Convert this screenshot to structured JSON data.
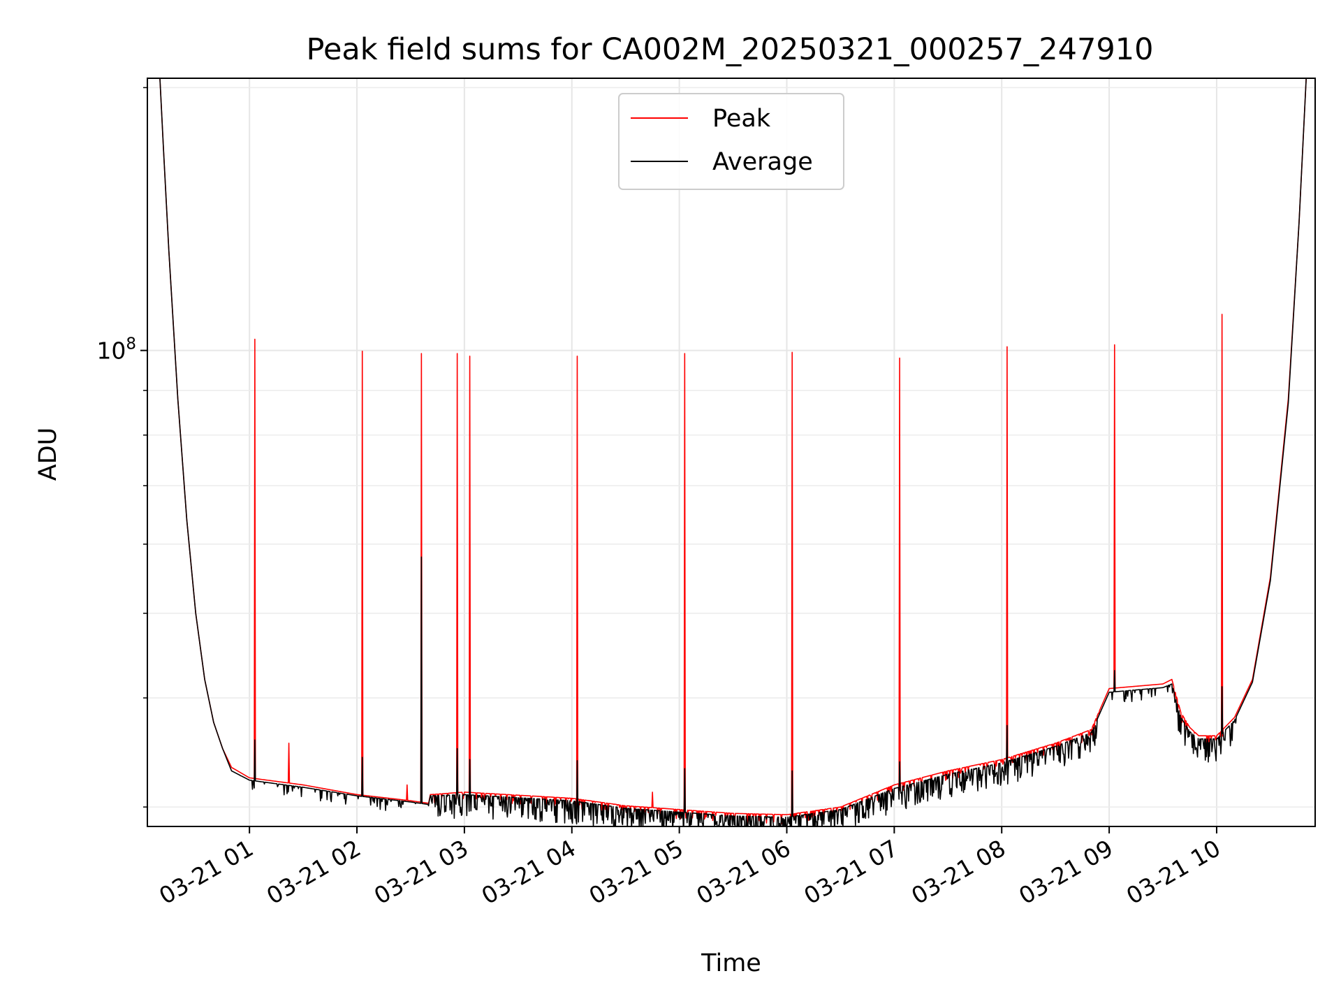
{
  "chart_data": {
    "type": "line",
    "title": "Peak field sums for CA002M_20250321_000257_247910",
    "xlabel": "Time",
    "ylabel": "ADU",
    "y_scale": "log",
    "ylim": [
      28500000,
      205000000
    ],
    "xlim": [
      "2025-03-21 00:03",
      "2025-03-21 10:55"
    ],
    "grid": true,
    "legend_position": "upper center",
    "x_tick_labels": [
      "03-21 01",
      "03-21 02",
      "03-21 03",
      "03-21 04",
      "03-21 05",
      "03-21 06",
      "03-21 07",
      "03-21 08",
      "03-21 09",
      "03-21 10"
    ],
    "x_ticks": [
      "2025-03-21 01:00",
      "2025-03-21 02:00",
      "2025-03-21 03:00",
      "2025-03-21 04:00",
      "2025-03-21 05:00",
      "2025-03-21 06:00",
      "2025-03-21 07:00",
      "2025-03-21 08:00",
      "2025-03-21 09:00",
      "2025-03-21 10:00"
    ],
    "y_major_tick_labels": [
      {
        "value": 100000000,
        "base": "10",
        "exp": "8"
      }
    ],
    "y_minor_ticks": [
      30000000,
      40000000,
      50000000,
      60000000,
      70000000,
      80000000,
      90000000,
      200000000
    ],
    "series": [
      {
        "name": "Peak",
        "color": "#ff0000",
        "baseline": [
          [
            "2025-03-21 00:10",
            205000000
          ],
          [
            "2025-03-21 00:12",
            170000000
          ],
          [
            "2025-03-21 00:15",
            130000000
          ],
          [
            "2025-03-21 00:20",
            88000000
          ],
          [
            "2025-03-21 00:25",
            64000000
          ],
          [
            "2025-03-21 00:30",
            50000000
          ],
          [
            "2025-03-21 00:35",
            42000000
          ],
          [
            "2025-03-21 00:40",
            37500000
          ],
          [
            "2025-03-21 00:45",
            35000000
          ],
          [
            "2025-03-21 00:50",
            33300000
          ],
          [
            "2025-03-21 01:00",
            32400000
          ],
          [
            "2025-03-21 01:30",
            31800000
          ],
          [
            "2025-03-21 02:00",
            31000000
          ],
          [
            "2025-03-21 02:30",
            30500000
          ],
          [
            "2025-03-21 02:40",
            30300000
          ],
          [
            "2025-03-21 02:41",
            31000000
          ],
          [
            "2025-03-21 03:00",
            31200000
          ],
          [
            "2025-03-21 04:00",
            30700000
          ],
          [
            "2025-03-21 04:30",
            30100000
          ],
          [
            "2025-03-21 05:00",
            29800000
          ],
          [
            "2025-03-21 05:30",
            29500000
          ],
          [
            "2025-03-21 06:00",
            29400000
          ],
          [
            "2025-03-21 06:30",
            30000000
          ],
          [
            "2025-03-21 07:00",
            31800000
          ],
          [
            "2025-03-21 07:30",
            33000000
          ],
          [
            "2025-03-21 08:00",
            34000000
          ],
          [
            "2025-03-21 08:30",
            35500000
          ],
          [
            "2025-03-21 08:50",
            36800000
          ],
          [
            "2025-03-21 09:00",
            41000000
          ],
          [
            "2025-03-21 09:30",
            41500000
          ],
          [
            "2025-03-21 09:35",
            42000000
          ],
          [
            "2025-03-21 09:40",
            38500000
          ],
          [
            "2025-03-21 09:45",
            37000000
          ],
          [
            "2025-03-21 09:50",
            36200000
          ],
          [
            "2025-03-21 10:00",
            36200000
          ],
          [
            "2025-03-21 10:10",
            38000000
          ],
          [
            "2025-03-21 10:20",
            42000000
          ],
          [
            "2025-03-21 10:30",
            55000000
          ],
          [
            "2025-03-21 10:40",
            88000000
          ],
          [
            "2025-03-21 10:46",
            140000000
          ],
          [
            "2025-03-21 10:50",
            205000000
          ],
          [
            "2025-03-21 10:55",
            205000000
          ]
        ],
        "spikes": [
          [
            "2025-03-21 01:03",
            103000000
          ],
          [
            "2025-03-21 02:03",
            99800000
          ],
          [
            "2025-03-21 02:36",
            99200000
          ],
          [
            "2025-03-21 02:56",
            99200000
          ],
          [
            "2025-03-21 03:03",
            98500000
          ],
          [
            "2025-03-21 04:03",
            98500000
          ],
          [
            "2025-03-21 05:03",
            99200000
          ],
          [
            "2025-03-21 06:03",
            99500000
          ],
          [
            "2025-03-21 07:03",
            98000000
          ],
          [
            "2025-03-21 08:03",
            101000000
          ],
          [
            "2025-03-21 09:03",
            101500000
          ],
          [
            "2025-03-21 10:03",
            110000000
          ]
        ],
        "small_spikes": [
          [
            "2025-03-21 01:22",
            35500000
          ],
          [
            "2025-03-21 02:28",
            31800000
          ],
          [
            "2025-03-21 04:45",
            31200000
          ]
        ]
      },
      {
        "name": "Average",
        "color": "#000000",
        "baseline": [
          [
            "2025-03-21 00:10",
            205000000
          ],
          [
            "2025-03-21 00:12",
            170000000
          ],
          [
            "2025-03-21 00:15",
            130000000
          ],
          [
            "2025-03-21 00:20",
            88000000
          ],
          [
            "2025-03-21 00:25",
            64000000
          ],
          [
            "2025-03-21 00:30",
            50000000
          ],
          [
            "2025-03-21 00:35",
            42000000
          ],
          [
            "2025-03-21 00:40",
            37500000
          ],
          [
            "2025-03-21 00:45",
            35000000
          ],
          [
            "2025-03-21 00:50",
            33000000
          ],
          [
            "2025-03-21 01:00",
            32200000
          ],
          [
            "2025-03-21 01:30",
            31600000
          ],
          [
            "2025-03-21 02:00",
            30900000
          ],
          [
            "2025-03-21 02:30",
            30400000
          ],
          [
            "2025-03-21 02:40",
            30200000
          ],
          [
            "2025-03-21 02:41",
            30900000
          ],
          [
            "2025-03-21 03:00",
            31000000
          ],
          [
            "2025-03-21 04:00",
            30500000
          ],
          [
            "2025-03-21 04:30",
            29900000
          ],
          [
            "2025-03-21 05:00",
            29600000
          ],
          [
            "2025-03-21 05:30",
            29300000
          ],
          [
            "2025-03-21 06:00",
            29200000
          ],
          [
            "2025-03-21 06:30",
            29800000
          ],
          [
            "2025-03-21 07:00",
            31500000
          ],
          [
            "2025-03-21 07:30",
            32700000
          ],
          [
            "2025-03-21 08:00",
            33700000
          ],
          [
            "2025-03-21 08:30",
            35200000
          ],
          [
            "2025-03-21 08:50",
            36500000
          ],
          [
            "2025-03-21 09:00",
            40600000
          ],
          [
            "2025-03-21 09:30",
            41100000
          ],
          [
            "2025-03-21 09:35",
            41500000
          ],
          [
            "2025-03-21 09:40",
            38000000
          ],
          [
            "2025-03-21 09:45",
            36600000
          ],
          [
            "2025-03-21 09:50",
            35900000
          ],
          [
            "2025-03-21 10:00",
            35900000
          ],
          [
            "2025-03-21 10:10",
            37700000
          ],
          [
            "2025-03-21 10:20",
            41700000
          ],
          [
            "2025-03-21 10:30",
            54500000
          ],
          [
            "2025-03-21 10:40",
            87000000
          ],
          [
            "2025-03-21 10:46",
            140000000
          ],
          [
            "2025-03-21 10:50",
            205000000
          ],
          [
            "2025-03-21 10:55",
            205000000
          ]
        ],
        "spikes": [
          [
            "2025-03-21 01:03",
            35800000
          ],
          [
            "2025-03-21 02:03",
            34200000
          ],
          [
            "2025-03-21 02:36",
            58000000
          ],
          [
            "2025-03-21 02:56",
            35000000
          ],
          [
            "2025-03-21 03:03",
            34000000
          ],
          [
            "2025-03-21 04:03",
            33900000
          ],
          [
            "2025-03-21 05:03",
            33200000
          ],
          [
            "2025-03-21 06:03",
            33000000
          ],
          [
            "2025-03-21 07:03",
            33800000
          ],
          [
            "2025-03-21 08:03",
            37200000
          ],
          [
            "2025-03-21 09:03",
            43000000
          ],
          [
            "2025-03-21 10:03",
            41200000
          ]
        ]
      }
    ]
  }
}
